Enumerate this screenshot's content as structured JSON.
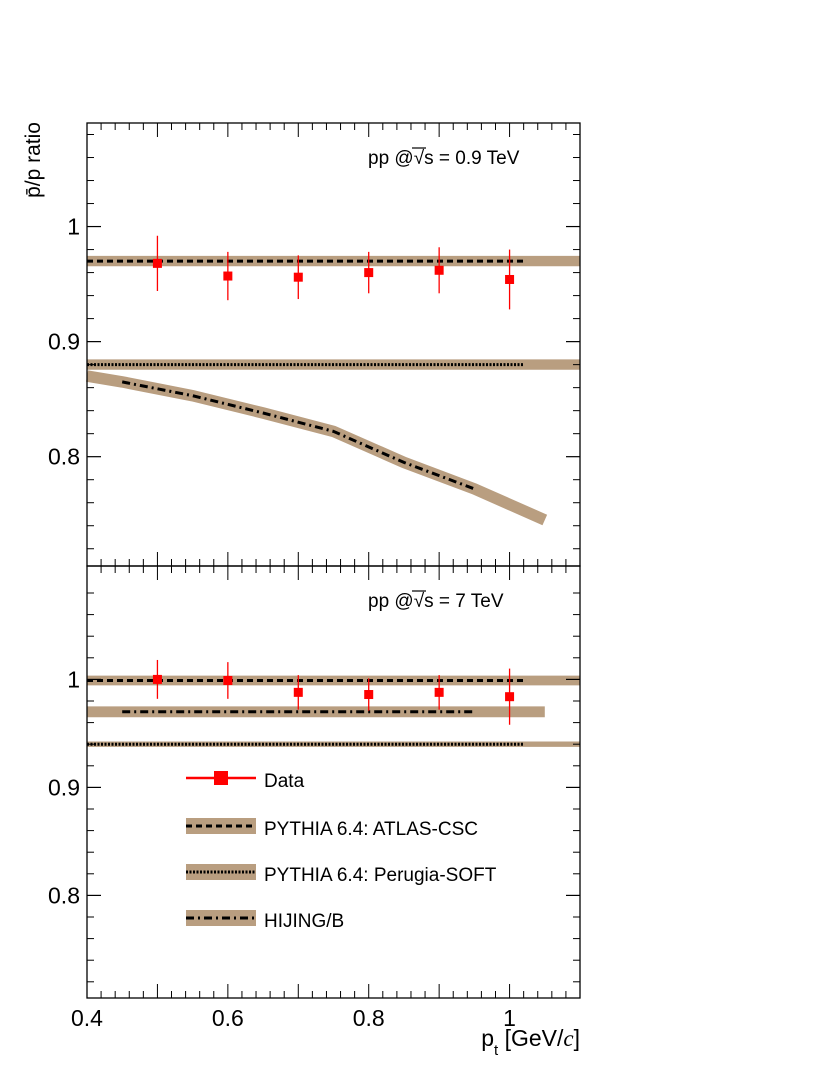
{
  "colors": {
    "band": "#b99e80",
    "data": "#ff0000",
    "axis": "#000000"
  },
  "yaxis_title": "p̄/p ratio",
  "xaxis_title": {
    "p": "p",
    "sub": "t",
    "unit_open": " [GeV/",
    "unit_c": "c",
    "unit_close": "]"
  },
  "x_tick_labels": [
    "0.4",
    "0.6",
    "0.8",
    "1"
  ],
  "legend": [
    {
      "label": "Data",
      "style": "data"
    },
    {
      "label": "PYTHIA 6.4: ATLAS-CSC",
      "style": "dashed"
    },
    {
      "label": "PYTHIA 6.4: Perugia-SOFT",
      "style": "dotted"
    },
    {
      "label": "HIJING/B",
      "style": "dashdot"
    }
  ],
  "chart_data": [
    {
      "type": "line",
      "panel": "top",
      "title": {
        "pre": "pp @",
        "sqrt": "s",
        "post": " = 0.9 TeV"
      },
      "xlim": [
        0.4,
        1.1
      ],
      "ylim": [
        0.705,
        1.09
      ],
      "yticks": [
        0.8,
        0.9,
        1.0
      ],
      "ytick_labels": [
        "0.8",
        "0.9",
        "1"
      ],
      "data_series": {
        "name": "Data",
        "x": [
          0.5,
          0.6,
          0.7,
          0.8,
          0.9,
          1.0
        ],
        "y": [
          0.968,
          0.957,
          0.956,
          0.96,
          0.962,
          0.954
        ],
        "yerr": [
          0.024,
          0.021,
          0.019,
          0.018,
          0.02,
          0.026
        ]
      },
      "models": [
        {
          "name": "PYTHIA 6.4: ATLAS-CSC",
          "style": "dashed",
          "band_x": [
            0.4,
            1.1
          ],
          "band_y": [
            0.97,
            0.97
          ],
          "band_width": 0.009,
          "line_x": [
            0.4,
            1.02
          ],
          "line_y": [
            0.97,
            0.97
          ]
        },
        {
          "name": "PYTHIA 6.4: Perugia-SOFT",
          "style": "dotted",
          "band_x": [
            0.4,
            1.1
          ],
          "band_y": [
            0.88,
            0.88
          ],
          "band_width": 0.009,
          "line_x": [
            0.4,
            1.02
          ],
          "line_y": [
            0.88,
            0.88
          ]
        },
        {
          "name": "HIJING/B",
          "style": "dashdot",
          "band_x": [
            0.4,
            0.45,
            0.55,
            0.65,
            0.75,
            0.85,
            0.95,
            1.05
          ],
          "band_y": [
            0.87,
            0.865,
            0.853,
            0.838,
            0.822,
            0.795,
            0.772,
            0.745
          ],
          "band_width": 0.01,
          "line_x": [
            0.45,
            0.55,
            0.65,
            0.75,
            0.85,
            0.95
          ],
          "line_y": [
            0.865,
            0.853,
            0.838,
            0.822,
            0.795,
            0.772
          ]
        }
      ]
    },
    {
      "type": "line",
      "panel": "bottom",
      "title": {
        "pre": "pp @",
        "sqrt": "s",
        "post": " = 7 TeV"
      },
      "xlim": [
        0.4,
        1.1
      ],
      "ylim": [
        0.705,
        1.105
      ],
      "yticks": [
        0.8,
        0.9,
        1.0
      ],
      "ytick_labels": [
        "0.8",
        "0.9",
        "1"
      ],
      "data_series": {
        "name": "Data",
        "x": [
          0.5,
          0.6,
          0.7,
          0.8,
          0.9,
          1.0
        ],
        "y": [
          1.0,
          0.999,
          0.988,
          0.986,
          0.988,
          0.984
        ],
        "yerr": [
          0.018,
          0.017,
          0.016,
          0.015,
          0.016,
          0.026
        ]
      },
      "models": [
        {
          "name": "PYTHIA 6.4: ATLAS-CSC",
          "style": "dashed",
          "band_x": [
            0.4,
            1.1
          ],
          "band_y": [
            0.999,
            0.999
          ],
          "band_width": 0.009,
          "line_x": [
            0.4,
            1.02
          ],
          "line_y": [
            0.999,
            0.999
          ]
        },
        {
          "name": "HIJING/B",
          "style": "dashdot",
          "band_x": [
            0.4,
            1.05
          ],
          "band_y": [
            0.97,
            0.97
          ],
          "band_width": 0.01,
          "line_x": [
            0.45,
            0.95
          ],
          "line_y": [
            0.97,
            0.97
          ]
        },
        {
          "name": "PYTHIA 6.4: Perugia-SOFT",
          "style": "dotted",
          "band_x": [
            0.4,
            1.1
          ],
          "band_y": [
            0.94,
            0.94
          ],
          "band_width": 0.005,
          "line_x": [
            0.4,
            1.02
          ],
          "line_y": [
            0.94,
            0.94
          ]
        }
      ]
    }
  ]
}
